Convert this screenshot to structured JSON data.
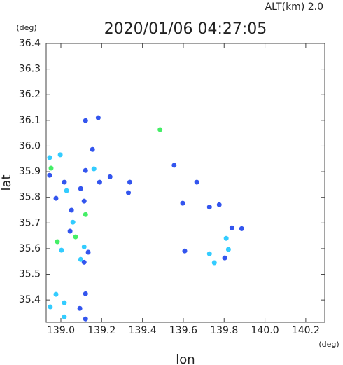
{
  "chart_data": {
    "type": "scatter",
    "title": "2020/01/06 04:27:05",
    "subtitle": "ALT(km) 2.0",
    "x_label": "lon",
    "y_label": "lat",
    "x_unit": "(deg)",
    "y_unit": "(deg)",
    "xlim": [
      138.928,
      140.293
    ],
    "ylim": [
      35.313,
      36.4
    ],
    "xticks": [
      {
        "value": 139.0,
        "label": "139.0"
      },
      139.2,
      139.4,
      139.6,
      139.8,
      {
        "value": 140.0,
        "label": "140.0"
      },
      140.2
    ],
    "yticks": [
      35.4,
      35.5,
      35.6,
      35.7,
      35.8,
      35.9,
      {
        "value": 36.0,
        "label": "36.0"
      },
      36.1,
      36.2,
      36.3,
      36.4
    ],
    "x": [
      138.945,
      138.952,
      138.997,
      138.945,
      139.017,
      139.028,
      138.976,
      139.121,
      139.183,
      139.155,
      139.121,
      139.162,
      139.097,
      139.114,
      139.052,
      139.121,
      139.059,
      139.045,
      139.072,
      138.983,
      139.003,
      139.114,
      139.134,
      139.097,
      139.114,
      139.19,
      139.241,
      139.338,
      139.331,
      139.555,
      139.666,
      139.597,
      139.776,
      139.728,
      139.838,
      139.886,
      139.81,
      139.821,
      139.728,
      139.607,
      139.752,
      139.803,
      138.976,
      138.948,
      139.017,
      139.121,
      139.093,
      139.017,
      139.121,
      139.486
    ],
    "y": [
      35.955,
      35.914,
      35.966,
      35.886,
      35.859,
      35.826,
      35.796,
      36.099,
      36.11,
      35.987,
      35.905,
      35.911,
      35.834,
      35.785,
      35.75,
      35.733,
      35.703,
      35.668,
      35.646,
      35.627,
      35.594,
      35.607,
      35.586,
      35.558,
      35.547,
      35.859,
      35.88,
      35.859,
      35.818,
      35.925,
      35.859,
      35.777,
      35.771,
      35.762,
      35.681,
      35.678,
      35.64,
      35.597,
      35.58,
      35.591,
      35.545,
      35.564,
      35.422,
      35.373,
      35.389,
      35.424,
      35.367,
      35.334,
      35.326,
      36.064
    ],
    "colors": [
      "#33ccff",
      "#44ee66",
      "#33ccff",
      "#3355ee",
      "#3355ee",
      "#33ccff",
      "#3355ee",
      "#3355ee",
      "#3355ee",
      "#3355ee",
      "#3355ee",
      "#33ccff",
      "#3355ee",
      "#3355ee",
      "#3355ee",
      "#44ee66",
      "#33ccff",
      "#3355ee",
      "#44ee66",
      "#44ee66",
      "#33ccff",
      "#33ccff",
      "#3355ee",
      "#33ccff",
      "#3355ee",
      "#3355ee",
      "#3355ee",
      "#3355ee",
      "#3355ee",
      "#3355ee",
      "#3355ee",
      "#3355ee",
      "#3355ee",
      "#3355ee",
      "#3355ee",
      "#3355ee",
      "#33ccff",
      "#33ccff",
      "#33ccff",
      "#3355ee",
      "#33ccff",
      "#3355ee",
      "#33ccff",
      "#33ccff",
      "#33ccff",
      "#3355ee",
      "#3355ee",
      "#33ccff",
      "#3355ee",
      "#44ee66"
    ]
  }
}
